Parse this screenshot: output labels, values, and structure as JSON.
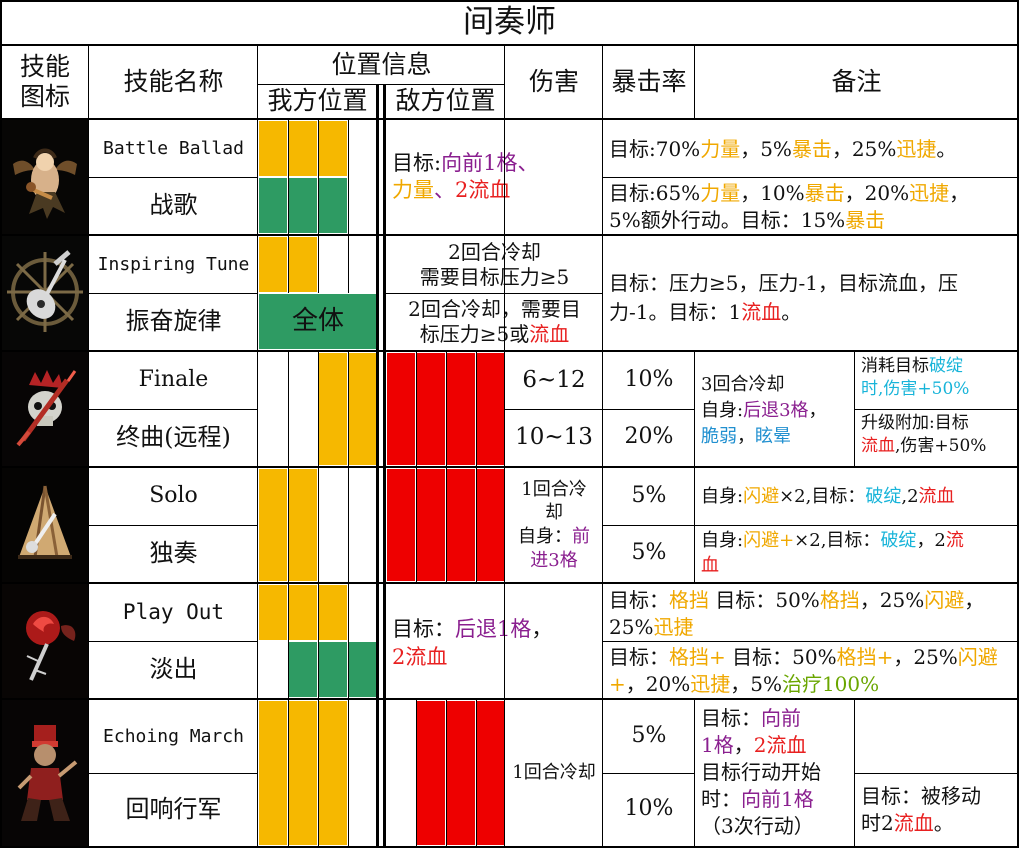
{
  "title": "间奏师",
  "headers": {
    "icon": [
      "技能",
      "图标"
    ],
    "skill_name": "技能名称",
    "position": "位置信息",
    "ally_position": "我方位置",
    "enemy_position": "敌方位置",
    "damage": "伤害",
    "crit": "暴击率",
    "notes": "备注"
  },
  "skills": [
    {
      "icon": "winged-lute-icon",
      "name_en": "Battle Ballad",
      "name_cn": "战歌",
      "target_line1": "目标:",
      "target_line1_b": "向前1格、",
      "target_line2_a": "力量",
      "target_line2_b": "、",
      "target_line2_c": "2流血",
      "note1_a": "目标:70%",
      "note1_b": "力量",
      "note1_c": "，5%",
      "note1_d": "暴击",
      "note1_e": "，25%",
      "note1_f": "迅捷",
      "note1_g": "。",
      "note2_a": "目标:65%",
      "note2_b": "力量",
      "note2_c": "，10%",
      "note2_d": "暴击",
      "note2_e": "，20%",
      "note2_f": "迅捷",
      "note2_g": "，",
      "note2_h": "5%额外行动。目标：15%",
      "note2_i": "暴击"
    },
    {
      "icon": "lute-radiant-icon",
      "name_en": "Inspiring Tune",
      "name_cn": "振奋旋律",
      "ally_all": "全体",
      "cooldown1_a": "2回合冷却",
      "cooldown1_b": "需要目标压力≥5",
      "cooldown2_a": "2回合冷却，需要目",
      "cooldown2_b": "标压力≥5或",
      "cooldown2_c": "流血",
      "note_a": "目标：压力≥5，压力-1，目标流血，压",
      "note_b": "力-1。目标：1",
      "note_c": "流血",
      "note_d": "。"
    },
    {
      "icon": "crowned-skull-icon",
      "name_en": "Finale",
      "name_cn": "终曲(远程)",
      "damage1": "6~12",
      "damage2": "10~13",
      "crit1": "10%",
      "crit2": "20%",
      "note_main_a": "3回合冷却",
      "note_main_b": "自身:",
      "note_main_c": "后退3格",
      "note_main_d": "，",
      "note_main_e": "脆弱",
      "note_main_f": "，",
      "note_main_g": "眩晕",
      "note_side1_a": "消耗目标",
      "note_side1_b": "破绽",
      "note_side1_c": "时,伤害+50%",
      "note_side2_a": "升级附加:目标",
      "note_side2_b": "流血",
      "note_side2_c": ",伤害+50%"
    },
    {
      "icon": "tent-icon",
      "name_en": "Solo",
      "name_cn": "独奏",
      "damage_a": "1回合冷",
      "damage_b": "却",
      "damage_c": "自身：",
      "damage_d": "前",
      "damage_e": "进3格",
      "crit1": "5%",
      "crit2": "5%",
      "note1_a": "自身:",
      "note1_b": "闪避",
      "note1_c": "×2,目标：",
      "note1_d": "破绽",
      "note1_e": ",2",
      "note1_f": "流血",
      "note2_a": "自身:",
      "note2_b": "闪避+",
      "note2_c": "×2,目标：",
      "note2_d": "破绽",
      "note2_e": "，2",
      "note2_f": "流",
      "note2_g": "血"
    },
    {
      "icon": "rose-thorn-icon",
      "name_en": "Play Out",
      "name_cn": "淡出",
      "target_a": "目标：",
      "target_b": "后退1格",
      "target_c": "，",
      "target_d": "2流血",
      "note1_a": "目标：",
      "note1_b": "格挡",
      "note1_c": " 目标：50%",
      "note1_d": "格挡",
      "note1_e": "，25%",
      "note1_f": "闪避",
      "note1_g": "，",
      "note1_h": "25%",
      "note1_i": "迅捷",
      "note2_a": "目标：",
      "note2_b": "格挡+",
      "note2_c": " 目标：50%",
      "note2_d": "格挡+",
      "note2_e": "，25%",
      "note2_f": "闪避",
      "note2_g": "+",
      "note2_h": "，20%",
      "note2_i": "迅捷",
      "note2_j": "，5%",
      "note2_k": "治疗100%"
    },
    {
      "icon": "marching-soldier-icon",
      "name_en": "Echoing March",
      "name_cn": "回响行军",
      "damage": "1回合冷却",
      "crit1": "5%",
      "crit2": "10%",
      "note_main_a": "目标：",
      "note_main_b": "向前",
      "note_main_c": "1格",
      "note_main_d": "，",
      "note_main_e": "2流血",
      "note_main_f": "目标行动开始",
      "note_main_g": "时：",
      "note_main_h": "向前1格",
      "note_main_i": "（3次行动）",
      "note_side_a": "目标：被移动",
      "note_side_b": "时2",
      "note_side_c": "流血",
      "note_side_d": "。"
    }
  ],
  "colors": {
    "ally_gold": "#f6b800",
    "ally_green": "#2e9b63",
    "enemy_red": "#ee0000"
  }
}
